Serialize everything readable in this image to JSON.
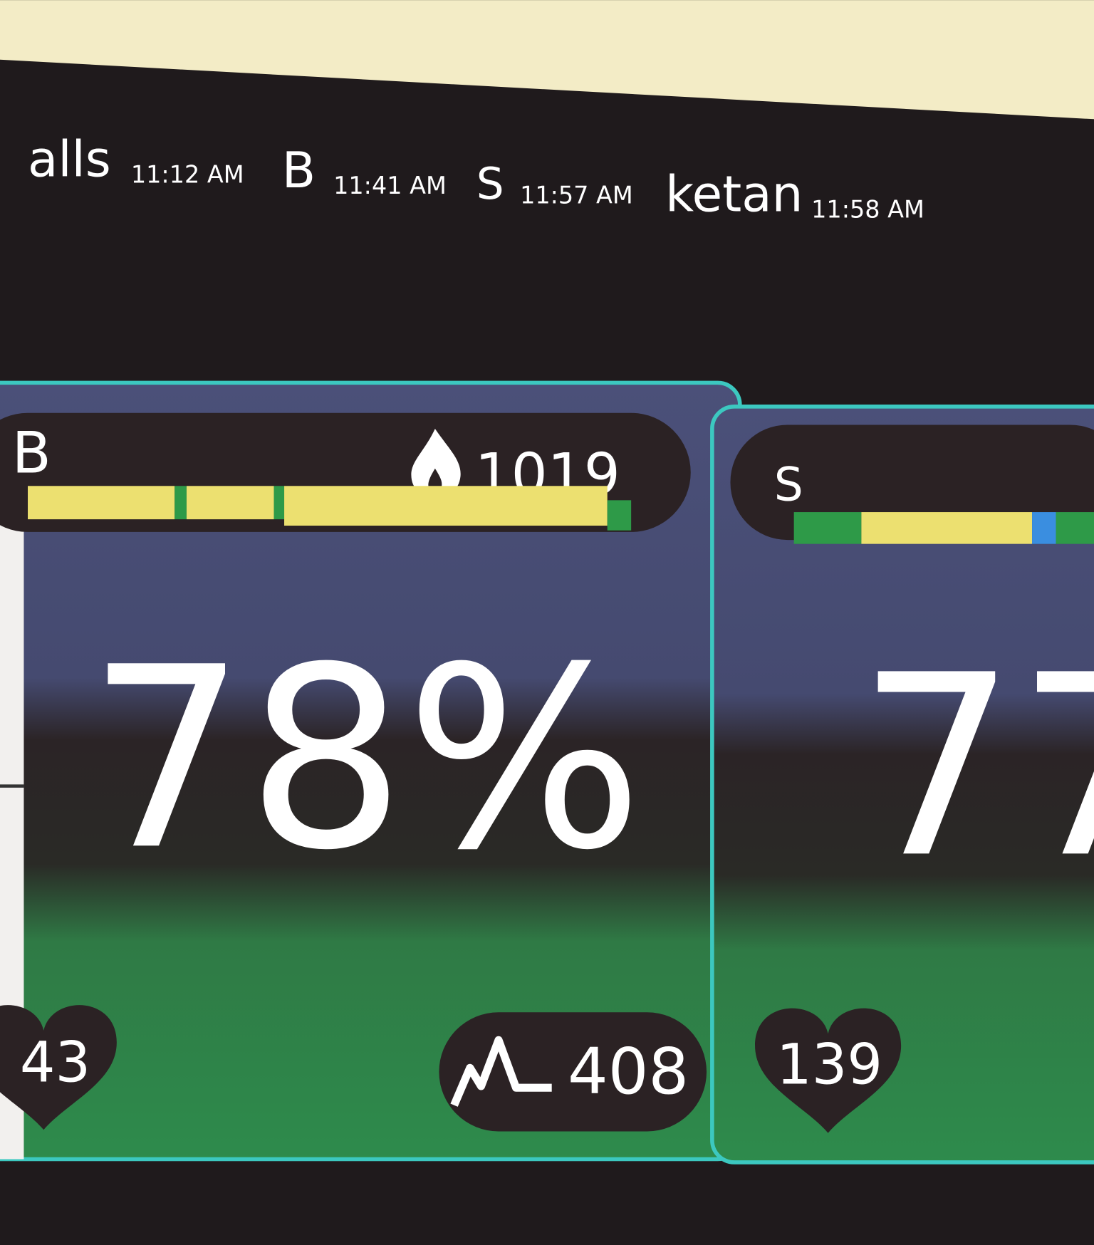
{
  "header": {
    "events": [
      {
        "name": "alls",
        "time": "11:12 AM"
      },
      {
        "name": "B",
        "time": "11:41 AM"
      },
      {
        "name": "S",
        "time": "11:57 AM"
      },
      {
        "name": "ketan",
        "time": "11:58 AM"
      }
    ]
  },
  "cards": [
    {
      "name": "B",
      "calories": 1019,
      "percent": "78%",
      "heart_rate": 43,
      "points": 408
    },
    {
      "name": "S",
      "percent": 77,
      "heart_rate": 139
    }
  ]
}
